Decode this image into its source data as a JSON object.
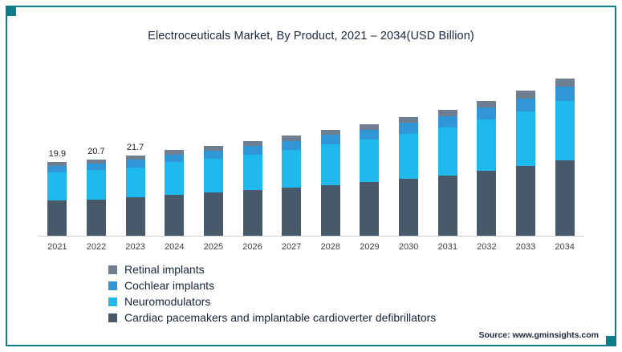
{
  "chart_data": {
    "type": "bar",
    "stacked": true,
    "title": "Electroceuticals Market, By Product, 2021 – 2034(USD Billion)",
    "categories": [
      "2021",
      "2022",
      "2023",
      "2024",
      "2025",
      "2026",
      "2027",
      "2028",
      "2029",
      "2030",
      "2031",
      "2032",
      "2033",
      "2034"
    ],
    "series": [
      {
        "key": "cardiac-pacemakers",
        "name": "Cardiac pacemakers and implantable cardioverter defibrillators",
        "color": "#48596b",
        "values": [
          9.6,
          9.9,
          10.4,
          11.1,
          11.7,
          12.3,
          13.0,
          13.8,
          14.5,
          15.5,
          16.4,
          17.6,
          18.9,
          20.4
        ]
      },
      {
        "key": "neuromodulators",
        "name": "Neuromodulators",
        "color": "#20b9ee",
        "values": [
          7.6,
          7.9,
          8.2,
          8.8,
          9.2,
          9.7,
          10.3,
          10.9,
          11.5,
          12.2,
          13.0,
          13.9,
          14.9,
          16.2
        ]
      },
      {
        "key": "cochlear-implants",
        "name": "Cochlear implants",
        "color": "#3096d6",
        "values": [
          1.8,
          1.9,
          2.0,
          2.1,
          2.2,
          2.3,
          2.4,
          2.6,
          2.7,
          2.9,
          3.1,
          3.3,
          3.5,
          3.8
        ]
      },
      {
        "key": "retinal-implants",
        "name": "Retinal implants",
        "color": "#6d7e91",
        "values": [
          0.9,
          1.0,
          1.1,
          1.2,
          1.2,
          1.3,
          1.4,
          1.4,
          1.5,
          1.6,
          1.7,
          1.8,
          2.0,
          2.2
        ]
      }
    ],
    "data_labels": [
      "19.9",
      "20.7",
      "21.7",
      "",
      "",
      "",
      "",
      "",
      "",
      "",
      "",
      "",
      "",
      ""
    ],
    "estimated_totals": [
      19.9,
      20.7,
      21.7,
      23.2,
      24.3,
      25.6,
      27.1,
      28.7,
      30.2,
      32.2,
      34.2,
      36.6,
      39.3,
      42.6
    ],
    "legend": [
      "Retinal implants",
      "Cochlear implants",
      "Neuromodulators",
      "Cardiac pacemakers and implantable cardioverter defibrillators"
    ],
    "legend_position": "bottom-left",
    "ylim": [
      0,
      45
    ],
    "grid": false
  },
  "frame": {
    "accent_color": "#0d7d8c",
    "source": "Source: www.gminsights.com"
  }
}
